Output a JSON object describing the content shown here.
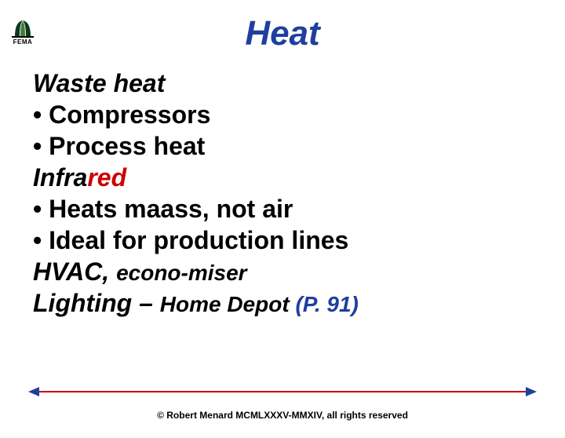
{
  "logo": {
    "label": "FEMA",
    "mark_color_dark": "#0a3a1e",
    "mark_color_light": "#4a7a3a"
  },
  "title": {
    "text": "Heat",
    "color": "#1f3f9f",
    "fontsize": 44
  },
  "content": {
    "fontsize": 32,
    "lines": [
      {
        "type": "heading",
        "text": "Waste heat"
      },
      {
        "type": "bullet",
        "text": "Compressors"
      },
      {
        "type": "bullet",
        "text": "Process heat"
      },
      {
        "type": "infrared",
        "black": "Infra",
        "red": "red"
      },
      {
        "type": "bullet",
        "text": "Heats maass, not air"
      },
      {
        "type": "bullet",
        "text": "Ideal for production lines"
      },
      {
        "type": "hvac",
        "big": "HVAC, ",
        "small": "econo-miser",
        "small_fontsize": 28
      },
      {
        "type": "lighting",
        "big": "Lighting – ",
        "small": "Home Depot ",
        "ref": "(P. 91)",
        "small_fontsize": 28,
        "ref_color": "#1f3f9f"
      }
    ]
  },
  "arrow": {
    "line_color": "#cc0000",
    "left_head_color": "#1f3f9f",
    "right_head_color": "#1f3f9f"
  },
  "copyright": {
    "text": "© Robert Menard MCMLXXXV-MMXIV, all rights reserved",
    "fontsize": 12,
    "color": "#000000"
  }
}
